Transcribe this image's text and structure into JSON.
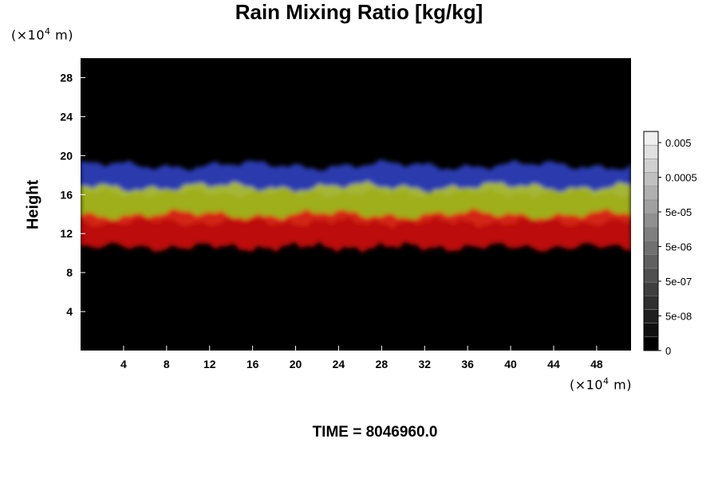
{
  "chart_data": {
    "type": "heatmap",
    "title": "Rain Mixing Ratio [kg/kg]",
    "xlabel": "",
    "ylabel": "Height",
    "x_unit": "(×10⁴ m)",
    "y_unit": "(×10⁴ m)",
    "xlim": [
      0,
      51.2
    ],
    "ylim": [
      0,
      30
    ],
    "x_ticks": [
      4,
      8,
      12,
      16,
      20,
      24,
      28,
      32,
      36,
      40,
      44,
      48
    ],
    "y_ticks": [
      4,
      8,
      12,
      16,
      20,
      24,
      28
    ],
    "colorbar": {
      "labels": [
        "0.005",
        "0.0005",
        "5e-05",
        "5e-06",
        "5e-07",
        "5e-08",
        "0"
      ],
      "levels": 16,
      "low_color": "#000000",
      "high_color": "#f0f0f0"
    },
    "bands": [
      {
        "color": "#3344cc",
        "y_range": [
          16.2,
          19.0
        ]
      },
      {
        "color": "#bbcc22",
        "y_range": [
          13.2,
          16.8
        ]
      },
      {
        "color": "#dd1111",
        "y_range": [
          10.6,
          14.0
        ]
      }
    ],
    "footer": "TIME = 8046960.0"
  }
}
